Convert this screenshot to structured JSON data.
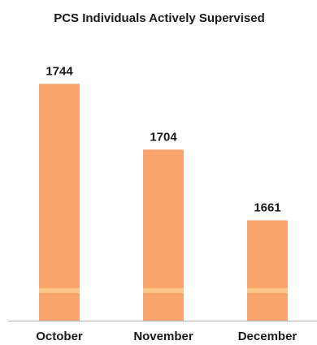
{
  "chart_data": {
    "type": "bar",
    "title": "PCS Individuals Actively Supervised",
    "xlabel": "",
    "ylabel": "",
    "categories": [
      "October",
      "November",
      "December"
    ],
    "values": [
      1744,
      1704,
      1661
    ],
    "data_labels": [
      "1744",
      "1704",
      "1661"
    ],
    "ylim": [
      1600,
      1754
    ],
    "grid": false,
    "legend": "none",
    "colors": {
      "bar": "#f9a46c",
      "bar_stripe": "#fcc58a",
      "axis": "#b8b8b8",
      "text": "#1a1a1a"
    }
  }
}
